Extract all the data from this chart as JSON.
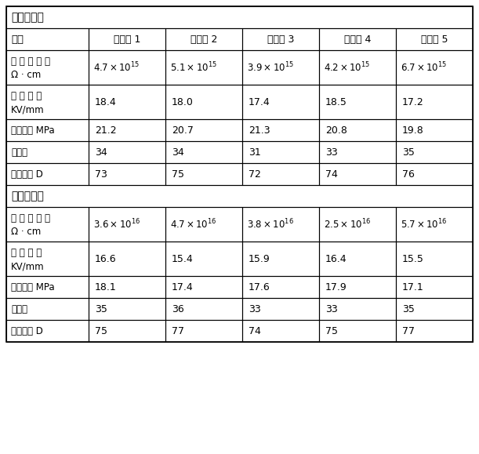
{
  "title1": "护套层材料",
  "title2": "绝缘层材料",
  "header_col": "性能",
  "headers": [
    "实施例 1",
    "实施例 2",
    "实施例 3",
    "实施例 4",
    "实施例 5"
  ],
  "section1_rows": [
    {
      "label_lines": [
        "体 积 电 阻 率",
        "Ω · cm"
      ],
      "values": [
        "4.7×10$^{15}$",
        "5.1×10$^{15}$",
        "3.9×10$^{15}$",
        "4.2×10$^{15}$",
        "6.7×10$^{15}$"
      ]
    },
    {
      "label_lines": [
        "击 穿 强 度",
        "KV/mm"
      ],
      "values": [
        "18.4",
        "18.0",
        "17.4",
        "18.5",
        "17.2"
      ]
    },
    {
      "label_lines": [
        "拉伸强度 MPa"
      ],
      "values": [
        "21.2",
        "20.7",
        "21.3",
        "20.8",
        "19.8"
      ]
    },
    {
      "label_lines": [
        "氧指数"
      ],
      "values": [
        "34",
        "34",
        "31",
        "33",
        "35"
      ]
    },
    {
      "label_lines": [
        "邵氏硬度 D"
      ],
      "values": [
        "73",
        "75",
        "72",
        "74",
        "76"
      ]
    }
  ],
  "section2_rows": [
    {
      "label_lines": [
        "体 积 电 阻 率",
        "Ω · cm"
      ],
      "values": [
        "3.6×10$^{16}$",
        "4.7×10$^{16}$",
        "3.8×10$^{16}$",
        "2.5×10$^{16}$",
        "5.7×10$^{16}$"
      ]
    },
    {
      "label_lines": [
        "击 穿 强 度",
        "KV/mm"
      ],
      "values": [
        "16.6",
        "15.4",
        "15.9",
        "16.4",
        "15.5"
      ]
    },
    {
      "label_lines": [
        "拉伸强度 MPa"
      ],
      "values": [
        "18.1",
        "17.4",
        "17.6",
        "17.9",
        "17.1"
      ]
    },
    {
      "label_lines": [
        "氧指数"
      ],
      "values": [
        "35",
        "36",
        "33",
        "33",
        "35"
      ]
    },
    {
      "label_lines": [
        "邵氏硬度 D"
      ],
      "values": [
        "75",
        "77",
        "74",
        "75",
        "77"
      ]
    }
  ],
  "bg_color": "#ffffff",
  "border_color": "#000000",
  "text_color": "#000000",
  "header_bg": "#ffffff",
  "section_header_bg": "#ffffff"
}
